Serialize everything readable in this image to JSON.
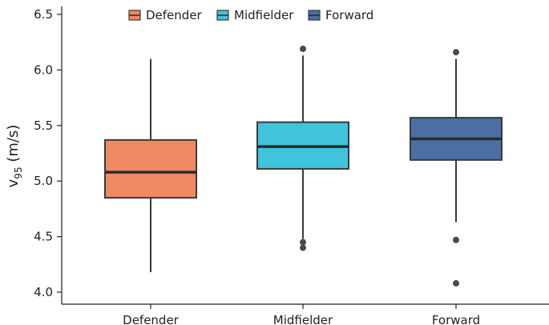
{
  "chart_data": {
    "type": "box",
    "ylabel": {
      "main": "v",
      "sub": "95",
      "unit": " (m/s)"
    },
    "ylim": [
      3.9,
      6.55
    ],
    "yticks": [
      "4.0",
      "4.5",
      "5.0",
      "5.5",
      "6.0",
      "6.5"
    ],
    "categories": [
      "Defender",
      "Midfielder",
      "Forward"
    ],
    "legend": {
      "position": "top",
      "entries": [
        "Defender",
        "Midfielder",
        "Forward"
      ]
    },
    "grid": false,
    "series": [
      {
        "name": "Defender",
        "color": "#EF8A62",
        "whisker_low": 4.18,
        "q1": 4.85,
        "median": 5.08,
        "q3": 5.37,
        "whisker_high": 6.1,
        "outliers": []
      },
      {
        "name": "Midfielder",
        "color": "#40C4DC",
        "whisker_low": 4.48,
        "q1": 5.11,
        "median": 5.31,
        "q3": 5.53,
        "whisker_high": 6.13,
        "outliers": [
          6.19,
          4.45,
          4.4
        ]
      },
      {
        "name": "Forward",
        "color": "#4A6FA5",
        "whisker_low": 4.63,
        "q1": 5.19,
        "median": 5.38,
        "q3": 5.57,
        "whisker_high": 6.1,
        "outliers": [
          6.16,
          4.47,
          4.08
        ]
      }
    ]
  }
}
